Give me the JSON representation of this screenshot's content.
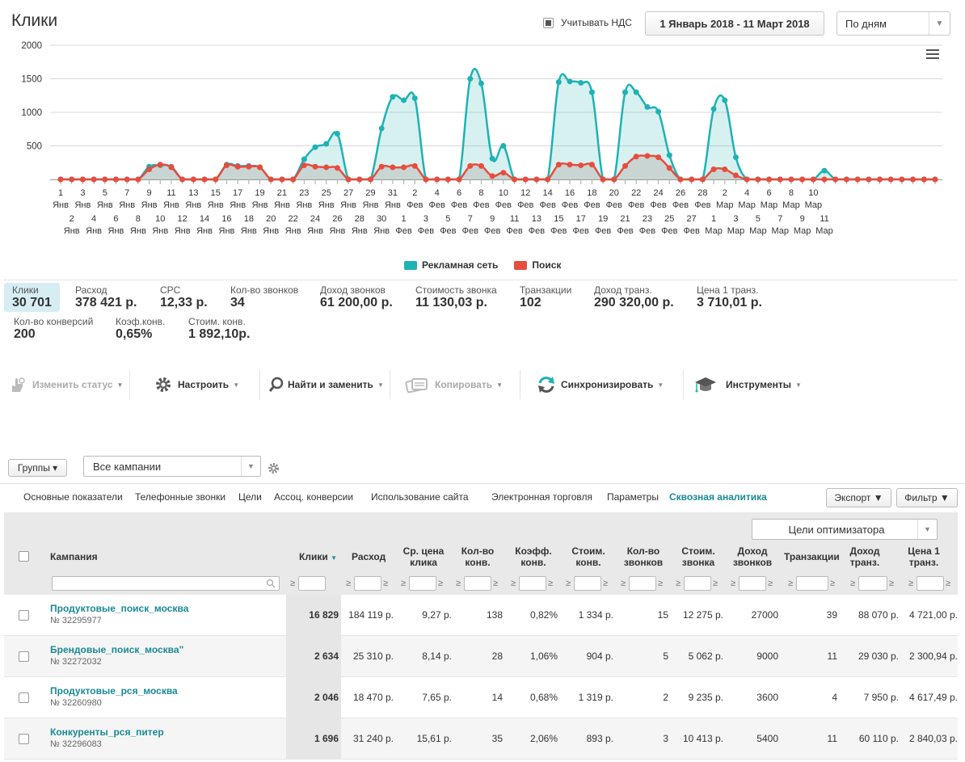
{
  "header": {
    "title": "Клики",
    "vat_label": "Учитывать НДС",
    "date_range": "1 Январь 2018 - 11 Март 2018",
    "period": "По дням"
  },
  "chart_data": {
    "type": "area",
    "y_ticks": [
      "2000",
      "1500",
      "1000",
      "500"
    ],
    "ylim": [
      0,
      2000
    ],
    "x_top": [
      [
        "1",
        "Янв"
      ],
      [
        "3",
        "Янв"
      ],
      [
        "5",
        "Янв"
      ],
      [
        "7",
        "Янв"
      ],
      [
        "9",
        "Янв"
      ],
      [
        "11",
        "Янв"
      ],
      [
        "13",
        "Янв"
      ],
      [
        "15",
        "Янв"
      ],
      [
        "17",
        "Янв"
      ],
      [
        "19",
        "Янв"
      ],
      [
        "21",
        "Янв"
      ],
      [
        "23",
        "Янв"
      ],
      [
        "25",
        "Янв"
      ],
      [
        "27",
        "Янв"
      ],
      [
        "29",
        "Янв"
      ],
      [
        "31",
        "Янв"
      ],
      [
        "2",
        "Фев"
      ],
      [
        "4",
        "Фев"
      ],
      [
        "6",
        "Фев"
      ],
      [
        "8",
        "Фев"
      ],
      [
        "10",
        "Фев"
      ],
      [
        "12",
        "Фев"
      ],
      [
        "14",
        "Фев"
      ],
      [
        "16",
        "Фев"
      ],
      [
        "18",
        "Фев"
      ],
      [
        "20",
        "Фев"
      ],
      [
        "22",
        "Фев"
      ],
      [
        "24",
        "Фев"
      ],
      [
        "26",
        "Фев"
      ],
      [
        "28",
        "Фев"
      ],
      [
        "2",
        "Мар"
      ],
      [
        "4",
        "Мар"
      ],
      [
        "6",
        "Мар"
      ],
      [
        "8",
        "Мар"
      ],
      [
        "10",
        "Мар"
      ]
    ],
    "x_bottom": [
      [
        "2",
        "Янв"
      ],
      [
        "4",
        "Янв"
      ],
      [
        "6",
        "Янв"
      ],
      [
        "8",
        "Янв"
      ],
      [
        "10",
        "Янв"
      ],
      [
        "12",
        "Янв"
      ],
      [
        "14",
        "Янв"
      ],
      [
        "16",
        "Янв"
      ],
      [
        "18",
        "Янв"
      ],
      [
        "20",
        "Янв"
      ],
      [
        "22",
        "Янв"
      ],
      [
        "24",
        "Янв"
      ],
      [
        "26",
        "Янв"
      ],
      [
        "28",
        "Янв"
      ],
      [
        "30",
        "Янв"
      ],
      [
        "1",
        "Фев"
      ],
      [
        "3",
        "Фев"
      ],
      [
        "5",
        "Фев"
      ],
      [
        "7",
        "Фев"
      ],
      [
        "9",
        "Фев"
      ],
      [
        "11",
        "Фев"
      ],
      [
        "13",
        "Фев"
      ],
      [
        "15",
        "Фев"
      ],
      [
        "17",
        "Фев"
      ],
      [
        "19",
        "Фев"
      ],
      [
        "21",
        "Фев"
      ],
      [
        "23",
        "Фев"
      ],
      [
        "25",
        "Фев"
      ],
      [
        "27",
        "Фев"
      ],
      [
        "1",
        "Мар"
      ],
      [
        "3",
        "Мар"
      ],
      [
        "5",
        "Мар"
      ],
      [
        "7",
        "Мар"
      ],
      [
        "9",
        "Мар"
      ],
      [
        "11",
        "Мар"
      ]
    ],
    "series": [
      {
        "name": "Рекламная сеть",
        "color": "#1fb2b4",
        "values": [
          0,
          0,
          0,
          0,
          0,
          0,
          0,
          0,
          190,
          210,
          190,
          0,
          0,
          0,
          0,
          220,
          200,
          200,
          180,
          0,
          0,
          0,
          300,
          480,
          530,
          680,
          0,
          0,
          0,
          760,
          1230,
          1180,
          1210,
          0,
          0,
          0,
          0,
          1500,
          1430,
          310,
          500,
          0,
          0,
          0,
          0,
          1450,
          1460,
          1440,
          1300,
          0,
          0,
          1300,
          1300,
          1080,
          1010,
          360,
          0,
          0,
          0,
          1050,
          1180,
          330,
          0,
          0,
          0,
          0,
          0,
          0,
          0,
          130,
          0,
          0,
          0,
          0,
          0,
          0,
          0,
          0,
          0,
          0
        ]
      },
      {
        "name": "Поиск",
        "color": "#e84c3d",
        "values": [
          0,
          0,
          0,
          0,
          0,
          0,
          0,
          0,
          150,
          220,
          180,
          0,
          0,
          0,
          0,
          210,
          190,
          190,
          180,
          0,
          0,
          0,
          210,
          190,
          180,
          170,
          0,
          0,
          0,
          190,
          180,
          180,
          200,
          0,
          0,
          0,
          0,
          200,
          200,
          50,
          100,
          0,
          0,
          0,
          0,
          220,
          220,
          210,
          220,
          0,
          0,
          200,
          340,
          350,
          330,
          170,
          0,
          0,
          0,
          150,
          150,
          60,
          0,
          0,
          0,
          0,
          0,
          0,
          0,
          0,
          0,
          0,
          0,
          0,
          0,
          0,
          0,
          0,
          0,
          0
        ]
      }
    ]
  },
  "legend": [
    {
      "label": "Рекламная сеть",
      "color": "#1fb2b4"
    },
    {
      "label": "Поиск",
      "color": "#e84c3d"
    }
  ],
  "stats": [
    {
      "label": "Клики",
      "value": "30 701"
    },
    {
      "label": "Расход",
      "value": "378 421 р."
    },
    {
      "label": "CPC",
      "value": "12,33 р."
    },
    {
      "label": "Кол-во звонков",
      "value": "34"
    },
    {
      "label": "Доход звонков",
      "value": "61 200,00 р."
    },
    {
      "label": "Стоимость звонка",
      "value": "11 130,03 р."
    },
    {
      "label": "Транзакции",
      "value": "102"
    },
    {
      "label": "Доход транз.",
      "value": "290 320,00 р."
    },
    {
      "label": "Цена 1 транз.",
      "value": "3 710,01 р."
    },
    {
      "label": "Кол-во конверсий",
      "value": "200"
    },
    {
      "label": "Коэф.конв.",
      "value": "0,65%"
    },
    {
      "label": "Стоим. конв.",
      "value": "1 892,10р."
    }
  ],
  "toolbar": {
    "change_status": "Изменить статус",
    "configure": "Настроить",
    "find_replace": "Найти и заменить",
    "copy": "Копировать",
    "sync": "Синхронизировать",
    "tools": "Инструменты"
  },
  "filters": {
    "groups": "Группы ▾",
    "campaigns": "Все кампании"
  },
  "tabs": [
    "Основные показатели",
    "Телефонные звонки",
    "Цели",
    "Ассоц. конверсии",
    "Использование сайта",
    "Электронная торговля",
    "Параметры",
    "Сквозная аналитика"
  ],
  "export_label": "Экспорт ▼",
  "filter_label": "Фильтр ▼",
  "optimizer_goals": "Цели оптимизатора",
  "columns": {
    "campaign": "Кампания",
    "clicks": "Клики",
    "cost": "Расход",
    "avg_cpc_1": "Ср. цена",
    "avg_cpc_2": "клика",
    "conv_1": "Кол-во",
    "conv_2": "конв.",
    "conv_rate_1": "Коэфф.",
    "conv_rate_2": "конв.",
    "conv_cost_1": "Стоим.",
    "conv_cost_2": "конв.",
    "calls_1": "Кол-во",
    "calls_2": "звонков",
    "call_cost_1": "Стоим.",
    "call_cost_2": "звонка",
    "call_rev_1": "Доход",
    "call_rev_2": "звонков",
    "transactions": "Транзакции",
    "tr_rev_1": "Доход",
    "tr_rev_2": "транз.",
    "tr_price_1": "Цена 1",
    "tr_price_2": "транз."
  },
  "rows": [
    {
      "name": "Продуктовые_поиск_москва",
      "id": "№ 32295977",
      "clicks": "16 829",
      "cost": "184 119 р.",
      "cpc": "9,27 р.",
      "conv": "138",
      "cr": "0,82%",
      "conv_cost": "1 334 р.",
      "calls": "15",
      "call_cost": "12 275 р.",
      "call_rev": "27000",
      "tr": "39",
      "tr_rev": "88 070 р.",
      "tr_price": "4 721,00 р."
    },
    {
      "name": "Брендовые_поиск_москва\"",
      "id": "№ 32272032",
      "clicks": "2 634",
      "cost": "25 310 р.",
      "cpc": "8,14 р.",
      "conv": "28",
      "cr": "1,06%",
      "conv_cost": "904 р.",
      "calls": "5",
      "call_cost": "5 062 р.",
      "call_rev": "9000",
      "tr": "11",
      "tr_rev": "29 030 р.",
      "tr_price": "2 300,94 р."
    },
    {
      "name": "Продуктовые_рся_москва",
      "id": "№ 32260980",
      "clicks": "2 046",
      "cost": "18 470 р.",
      "cpc": "7,65 р.",
      "conv": "14",
      "cr": "0,68%",
      "conv_cost": "1 319 р.",
      "calls": "2",
      "call_cost": "9 235 р.",
      "call_rev": "3600",
      "tr": "4",
      "tr_rev": "7 950 р.",
      "tr_price": "4 617,49 р."
    },
    {
      "name": "Конкуренты_рся_питер",
      "id": "№ 32296083",
      "clicks": "1 696",
      "cost": "31 240 р.",
      "cpc": "15,61 р.",
      "conv": "35",
      "cr": "2,06%",
      "conv_cost": "893 р.",
      "calls": "3",
      "call_cost": "10 413 р.",
      "call_rev": "5400",
      "tr": "11",
      "tr_rev": "60 110 р.",
      "tr_price": "2 840,03 р."
    }
  ]
}
